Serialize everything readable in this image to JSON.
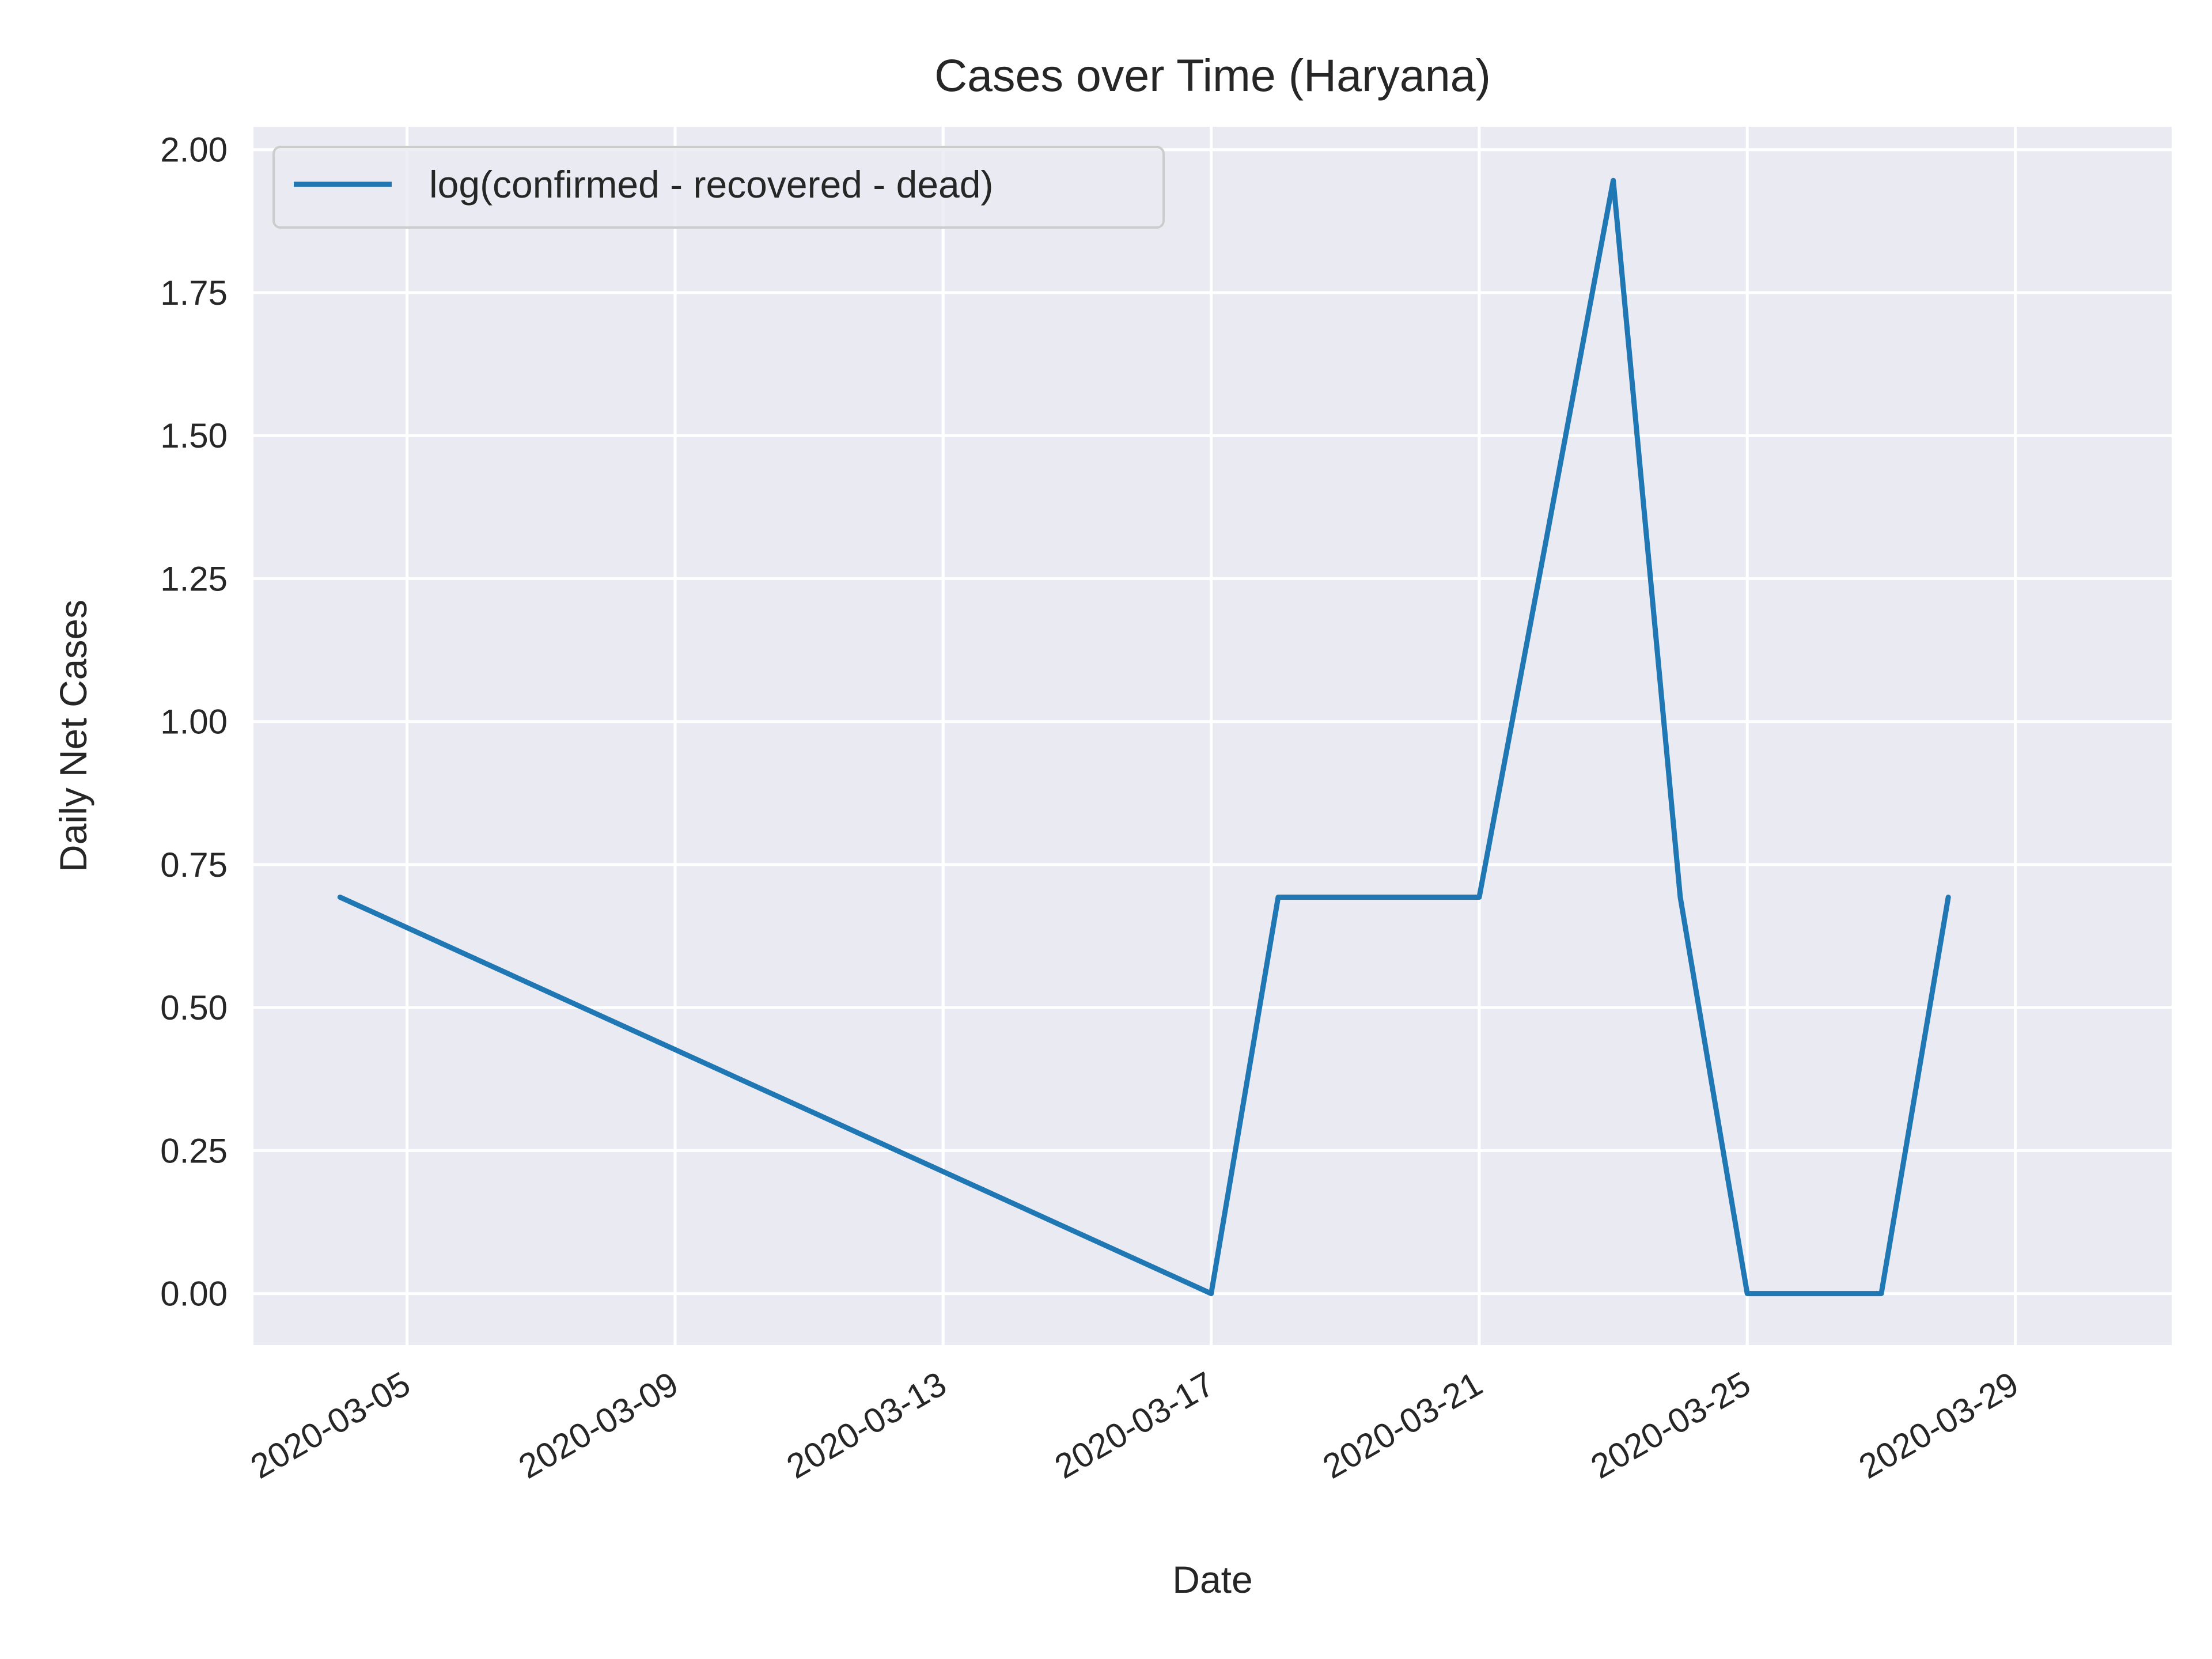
{
  "chart_data": {
    "type": "line",
    "title": "Cases over Time (Haryana)",
    "xlabel": "Date",
    "ylabel": "Daily Net Cases",
    "x_tick_labels": [
      "2020-03-05",
      "2020-03-09",
      "2020-03-13",
      "2020-03-17",
      "2020-03-21",
      "2020-03-25",
      "2020-03-29"
    ],
    "y_tick_labels": [
      "0.00",
      "0.25",
      "0.50",
      "0.75",
      "1.00",
      "1.25",
      "1.50",
      "1.75",
      "2.00"
    ],
    "y_ticks": [
      0,
      0.25,
      0.5,
      0.75,
      1.0,
      1.25,
      1.5,
      1.75,
      2.0
    ],
    "x_ticks": [
      "2020-03-05",
      "2020-03-09",
      "2020-03-13",
      "2020-03-17",
      "2020-03-21",
      "2020-03-25",
      "2020-03-29"
    ],
    "xlim": [
      "2020-03-02T17:00",
      "2020-03-31T08:00"
    ],
    "ylim": [
      -0.09,
      2.04
    ],
    "grid": true,
    "legend_position": "upper-left",
    "background_color": "#eaeaf2",
    "grid_color": "#ffffff",
    "series": [
      {
        "name": "log(confirmed - recovered - dead)",
        "color": "#1f77b4",
        "x": [
          "2020-03-04",
          "2020-03-17",
          "2020-03-18",
          "2020-03-19",
          "2020-03-20",
          "2020-03-21",
          "2020-03-22",
          "2020-03-23",
          "2020-03-24",
          "2020-03-25",
          "2020-03-26",
          "2020-03-27",
          "2020-03-28"
        ],
        "y": [
          0.693,
          0.0,
          0.693,
          0.693,
          0.693,
          0.693,
          1.318,
          1.946,
          0.693,
          0.0,
          0.0,
          0.0,
          0.693
        ]
      }
    ]
  }
}
